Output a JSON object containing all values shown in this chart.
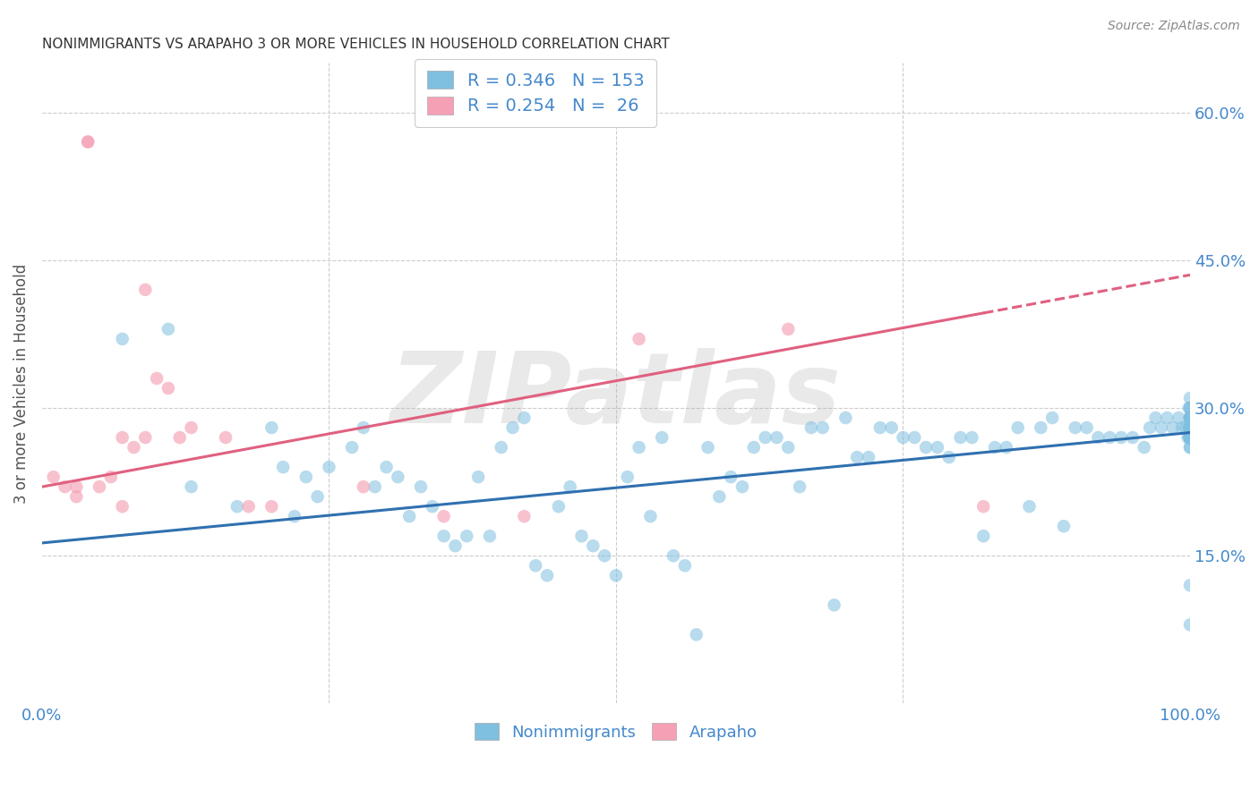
{
  "title": "NONIMMIGRANTS VS ARAPAHO 3 OR MORE VEHICLES IN HOUSEHOLD CORRELATION CHART",
  "source": "Source: ZipAtlas.com",
  "ylabel": "3 or more Vehicles in Household",
  "xlim": [
    0,
    1.0
  ],
  "ylim": [
    0,
    0.65
  ],
  "yticks": [
    0.15,
    0.3,
    0.45,
    0.6
  ],
  "ytick_labels": [
    "15.0%",
    "30.0%",
    "45.0%",
    "60.0%"
  ],
  "xtick_labels": [
    "0.0%",
    "",
    "",
    "",
    "100.0%"
  ],
  "blue_scatter_color": "#7fbfdf",
  "pink_scatter_color": "#f5a0b5",
  "blue_line_color": "#3070b0",
  "pink_line_color": "#e06080",
  "axis_label_color": "#4488cc",
  "watermark": "ZIPatlas",
  "blue_intercept": 0.163,
  "blue_slope": 0.112,
  "pink_intercept": 0.22,
  "pink_slope": 0.215,
  "blue_x": [
    0.07,
    0.11,
    0.13,
    0.17,
    0.2,
    0.21,
    0.22,
    0.23,
    0.24,
    0.25,
    0.27,
    0.28,
    0.29,
    0.3,
    0.31,
    0.32,
    0.33,
    0.34,
    0.35,
    0.36,
    0.37,
    0.38,
    0.39,
    0.4,
    0.41,
    0.42,
    0.43,
    0.44,
    0.45,
    0.46,
    0.47,
    0.48,
    0.49,
    0.5,
    0.51,
    0.52,
    0.53,
    0.54,
    0.55,
    0.56,
    0.57,
    0.58,
    0.59,
    0.6,
    0.61,
    0.62,
    0.63,
    0.64,
    0.65,
    0.66,
    0.67,
    0.68,
    0.69,
    0.7,
    0.71,
    0.72,
    0.73,
    0.74,
    0.75,
    0.76,
    0.77,
    0.78,
    0.79,
    0.8,
    0.81,
    0.82,
    0.83,
    0.84,
    0.85,
    0.86,
    0.87,
    0.88,
    0.89,
    0.9,
    0.91,
    0.92,
    0.93,
    0.94,
    0.95,
    0.96,
    0.965,
    0.97,
    0.975,
    0.98,
    0.985,
    0.99,
    0.993,
    0.996,
    0.998,
    0.999,
    1.0,
    1.0,
    1.0,
    1.0,
    1.0,
    1.0,
    1.0,
    1.0,
    1.0,
    1.0,
    1.0,
    1.0,
    1.0,
    1.0,
    1.0,
    1.0,
    1.0,
    1.0,
    1.0,
    1.0,
    1.0,
    1.0,
    1.0,
    1.0,
    1.0,
    1.0,
    1.0,
    1.0,
    1.0,
    1.0,
    1.0,
    1.0,
    1.0,
    1.0,
    1.0,
    1.0,
    1.0,
    1.0,
    1.0,
    1.0,
    1.0,
    1.0,
    1.0,
    1.0,
    1.0,
    1.0,
    1.0,
    1.0,
    1.0,
    1.0,
    1.0,
    1.0,
    1.0,
    1.0,
    1.0,
    1.0,
    1.0,
    1.0,
    1.0
  ],
  "blue_y": [
    0.37,
    0.38,
    0.22,
    0.2,
    0.28,
    0.24,
    0.19,
    0.23,
    0.21,
    0.24,
    0.26,
    0.28,
    0.22,
    0.24,
    0.23,
    0.19,
    0.22,
    0.2,
    0.17,
    0.16,
    0.17,
    0.23,
    0.17,
    0.26,
    0.28,
    0.29,
    0.14,
    0.13,
    0.2,
    0.22,
    0.17,
    0.16,
    0.15,
    0.13,
    0.23,
    0.26,
    0.19,
    0.27,
    0.15,
    0.14,
    0.07,
    0.26,
    0.21,
    0.23,
    0.22,
    0.26,
    0.27,
    0.27,
    0.26,
    0.22,
    0.28,
    0.28,
    0.1,
    0.29,
    0.25,
    0.25,
    0.28,
    0.28,
    0.27,
    0.27,
    0.26,
    0.26,
    0.25,
    0.27,
    0.27,
    0.17,
    0.26,
    0.26,
    0.28,
    0.2,
    0.28,
    0.29,
    0.18,
    0.28,
    0.28,
    0.27,
    0.27,
    0.27,
    0.27,
    0.26,
    0.28,
    0.29,
    0.28,
    0.29,
    0.28,
    0.29,
    0.28,
    0.28,
    0.27,
    0.3,
    0.28,
    0.29,
    0.29,
    0.27,
    0.28,
    0.28,
    0.29,
    0.28,
    0.27,
    0.29,
    0.28,
    0.27,
    0.08,
    0.28,
    0.26,
    0.27,
    0.12,
    0.28,
    0.29,
    0.3,
    0.27,
    0.28,
    0.27,
    0.31,
    0.29,
    0.28,
    0.29,
    0.3,
    0.28,
    0.27,
    0.27,
    0.28,
    0.27,
    0.27,
    0.27,
    0.28,
    0.27,
    0.27,
    0.28,
    0.26,
    0.27,
    0.27,
    0.27,
    0.28,
    0.27,
    0.27,
    0.28,
    0.27,
    0.27,
    0.28,
    0.27,
    0.27,
    0.28,
    0.27,
    0.27,
    0.27,
    0.27,
    0.27,
    0.27
  ],
  "pink_x": [
    0.01,
    0.02,
    0.03,
    0.03,
    0.04,
    0.04,
    0.05,
    0.06,
    0.07,
    0.07,
    0.08,
    0.09,
    0.09,
    0.1,
    0.11,
    0.12,
    0.13,
    0.16,
    0.18,
    0.2,
    0.28,
    0.35,
    0.42,
    0.52,
    0.65,
    0.82
  ],
  "pink_y": [
    0.23,
    0.22,
    0.21,
    0.22,
    0.57,
    0.57,
    0.22,
    0.23,
    0.2,
    0.27,
    0.26,
    0.42,
    0.27,
    0.33,
    0.32,
    0.27,
    0.28,
    0.27,
    0.2,
    0.2,
    0.22,
    0.19,
    0.19,
    0.37,
    0.38,
    0.2
  ]
}
